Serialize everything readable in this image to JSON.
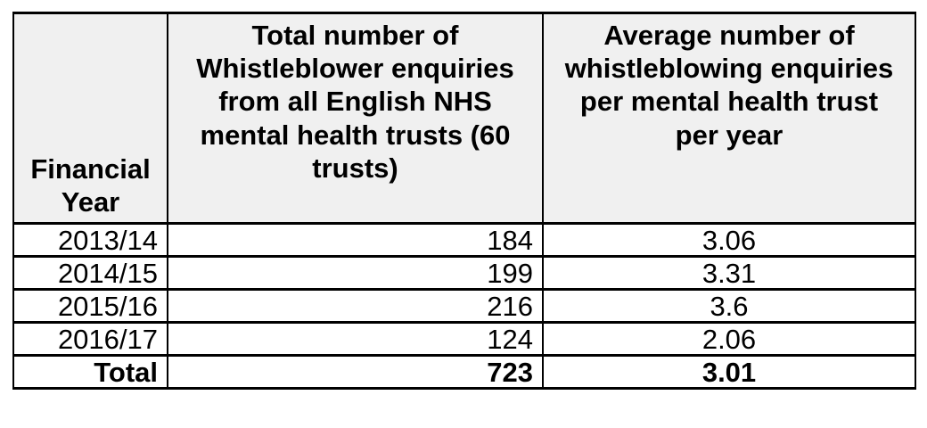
{
  "table": {
    "columns": [
      {
        "key": "year",
        "header": "Financial Year"
      },
      {
        "key": "total",
        "header": "Total number of Whistleblower enquiries from all English NHS mental health trusts (60 trusts)"
      },
      {
        "key": "average",
        "header": "Average number of whistleblowing enquiries per mental health trust per year"
      }
    ],
    "rows": [
      {
        "year": "2013/14",
        "total": "184",
        "average": "3.06"
      },
      {
        "year": "2014/15",
        "total": "199",
        "average": "3.31"
      },
      {
        "year": "2015/16",
        "total": "216",
        "average": "3.6"
      },
      {
        "year": "2016/17",
        "total": "124",
        "average": "2.06"
      }
    ],
    "total_row": {
      "year": "Total",
      "total": "723",
      "average": "3.01"
    }
  },
  "colors": {
    "header_bg": "#f0f0f0",
    "border": "#000000",
    "text": "#000000",
    "row_bg": "#ffffff",
    "page_bg": "#ffffff"
  }
}
